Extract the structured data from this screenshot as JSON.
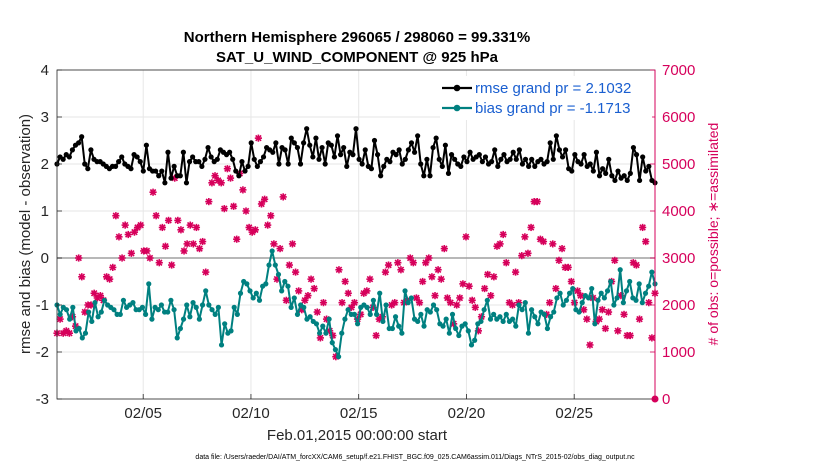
{
  "chart_data": {
    "type": "line",
    "title": "Northern Hemisphere 296065 / 298060 = 99.331%",
    "subtitle": "SAT_U_WIND_COMPONENT @ 925 hPa",
    "xlabel": "Feb.01,2015 00:00:00 start",
    "ylabel": "rmse and bias (model - observation)",
    "ylabel_right": "# of obs: o=possible; ∗=assimilated",
    "x_range_days": [
      1,
      28.75
    ],
    "ylim": [
      -3,
      4
    ],
    "ylim_right": [
      0,
      7000
    ],
    "x_ticks": [
      {
        "day": 5,
        "label": "02/05"
      },
      {
        "day": 10,
        "label": "02/10"
      },
      {
        "day": 15,
        "label": "02/15"
      },
      {
        "day": 20,
        "label": "02/20"
      },
      {
        "day": 25,
        "label": "02/25"
      }
    ],
    "y_ticks": [
      "-3",
      "-2",
      "-1",
      "0",
      "1",
      "2",
      "3",
      "4"
    ],
    "y_ticks_right": [
      "0",
      "1000",
      "2000",
      "3000",
      "4000",
      "5000",
      "6000",
      "7000"
    ],
    "grid": true,
    "legend_position": "top-right",
    "colors": {
      "rmse": "#000000",
      "bias": "#008080",
      "obs": "#d6005b",
      "zero_line": "#a0a0a0"
    },
    "series": [
      {
        "name": "rmse grand pr = 2.1032",
        "axis": "left",
        "marker": "circle",
        "values": [
          2.0,
          2.15,
          2.1,
          2.2,
          2.15,
          2.3,
          2.4,
          2.45,
          2.58,
          2.0,
          1.9,
          2.3,
          2.1,
          2.05,
          2.05,
          2.0,
          1.95,
          1.9,
          1.95,
          1.95,
          2.05,
          2.15,
          2.0,
          1.95,
          1.9,
          2.2,
          2.15,
          2.05,
          1.85,
          2.4,
          1.9,
          1.85,
          1.85,
          1.75,
          1.85,
          1.6,
          2.25,
          1.7,
          1.95,
          1.75,
          1.75,
          2.25,
          1.6,
          2.05,
          2.15,
          2.05,
          2.05,
          1.95,
          2.1,
          2.35,
          2.15,
          2.05,
          2.1,
          2.3,
          2.25,
          2.2,
          2.25,
          2.1,
          1.85,
          1.75,
          2.05,
          1.85,
          1.95,
          2.45,
          2.1,
          1.95,
          2.05,
          2.15,
          2.35,
          2.3,
          2.25,
          2.45,
          2.0,
          2.35,
          2.3,
          2.0,
          2.55,
          2.45,
          2.35,
          2.0,
          2.45,
          2.75,
          2.4,
          2.15,
          2.55,
          2.1,
          2.35,
          2.0,
          2.45,
          2.4,
          2.15,
          2.6,
          2.2,
          2.35,
          1.95,
          2.25,
          2.2,
          2.75,
          2.1,
          2.0,
          2.3,
          1.95,
          1.9,
          2.5,
          2.2,
          1.75,
          1.95,
          2.1,
          2.05,
          2.25,
          2.2,
          2.3,
          2.0,
          2.1,
          2.3,
          2.45,
          2.25,
          2.6,
          2.0,
          1.75,
          2.1,
          1.75,
          2.35,
          2.55,
          2.1,
          1.95,
          2.4,
          1.8,
          2.2,
          2.1,
          2.0,
          1.95,
          2.15,
          2.05,
          2.25,
          2.1,
          2.15,
          2.2,
          2.05,
          2.15,
          2.0,
          2.05,
          2.3,
          1.95,
          2.1,
          2.2,
          2.05,
          2.1,
          2.25,
          2.1,
          2.3,
          2.0,
          2.1,
          1.95,
          2.1,
          1.95,
          2.05,
          2.1,
          2.0,
          2.05,
          2.45,
          2.1,
          2.6,
          2.3,
          2.15,
          2.3,
          1.9,
          1.85,
          2.2,
          2.05,
          2.0,
          2.2,
          1.95,
          2.0,
          1.85,
          2.25,
          1.75,
          1.9,
          1.8,
          2.1,
          1.75,
          1.65,
          1.85,
          1.7,
          1.75,
          1.65,
          1.8,
          2.35,
          2.2,
          1.65,
          2.15,
          1.85,
          1.95,
          1.65,
          1.6
        ]
      },
      {
        "name": "bias grand pr = -1.1713",
        "axis": "left",
        "marker": "circle",
        "values": [
          -1.0,
          -1.2,
          -1.05,
          -1.1,
          -1.3,
          -1.05,
          -1.55,
          -1.5,
          -1.7,
          -1.6,
          -1.15,
          -1.35,
          -0.95,
          -1.25,
          -1.15,
          -0.9,
          -1.0,
          -1.05,
          -1.1,
          -1.2,
          -1.2,
          -0.9,
          -1.05,
          -1.0,
          -0.95,
          -1.1,
          -1.1,
          -1.05,
          -1.2,
          -0.55,
          -1.3,
          -1.05,
          -1.1,
          -1.0,
          -1.15,
          -1.15,
          -0.9,
          -1.1,
          -1.7,
          -1.5,
          -1.3,
          -1.0,
          -1.25,
          -0.95,
          -1.05,
          -1.3,
          -1.0,
          -0.7,
          -1.0,
          -1.1,
          -1.2,
          -1.05,
          -1.85,
          -1.4,
          -1.6,
          -1.55,
          -1.05,
          -1.2,
          -0.75,
          -0.5,
          -0.55,
          -0.7,
          -0.85,
          -0.75,
          -0.9,
          -0.6,
          -0.55,
          -0.15,
          0.15,
          -0.15,
          -0.35,
          -0.7,
          -0.5,
          -0.6,
          -1.05,
          -0.85,
          -1.2,
          -1.0,
          -1.05,
          -1.3,
          -1.25,
          -1.35,
          -1.4,
          -1.6,
          -1.45,
          -1.6,
          -1.3,
          -1.8,
          -1.95,
          -2.1,
          -1.6,
          -1.3,
          -1.1,
          -1.2,
          -1.2,
          -1.4,
          -1.05,
          -1.0,
          -1.05,
          -1.2,
          -0.9,
          -1.2,
          -0.75,
          -1.35,
          -1.0,
          -1.5,
          -1.5,
          -1.25,
          -1.45,
          -1.6,
          -0.7,
          -0.95,
          -0.85,
          -1.3,
          -1.35,
          -1.2,
          -1.45,
          -1.1,
          -1.15,
          -1.0,
          -1.1,
          -1.4,
          -1.45,
          -1.3,
          -1.6,
          -1.2,
          -1.5,
          -1.65,
          -1.45,
          -1.4,
          -1.55,
          -1.85,
          -1.75,
          -1.4,
          -1.35,
          -1.1,
          -0.9,
          -1.3,
          -1.2,
          -1.3,
          -1.25,
          -1.35,
          -1.2,
          -1.35,
          -1.3,
          -1.45,
          -1.0,
          -1.1,
          -0.95,
          -1.6,
          -1.1,
          -1.25,
          -1.4,
          -1.15,
          -1.2,
          -1.5,
          -1.25,
          -1.15,
          -0.85,
          -0.75,
          -1.0,
          -0.9,
          -0.75,
          -0.65,
          -1.1,
          -1.15,
          -0.95,
          -0.8,
          -0.85,
          -0.65,
          -1.4,
          -0.9,
          -0.75,
          -0.85,
          -0.7,
          -0.5,
          -1.0,
          -0.85,
          -0.25,
          -0.95,
          -0.7,
          -0.5,
          -0.85,
          -0.9,
          -0.55,
          -0.95,
          -0.75,
          -0.6,
          -0.3,
          -0.55
        ]
      },
      {
        "name": "# of obs",
        "axis": "right",
        "marker": "asterisk",
        "values": [
          1400,
          1700,
          1400,
          1450,
          1400,
          1750,
          1550,
          3000,
          2600,
          1850,
          2000,
          2000,
          2250,
          2150,
          2200,
          2100,
          2600,
          2550,
          2800,
          3900,
          3450,
          3000,
          3700,
          3500,
          3100,
          3550,
          3650,
          3700,
          3150,
          3150,
          3000,
          4400,
          3900,
          2900,
          3650,
          3250,
          3800,
          2850,
          4700,
          3800,
          3600,
          3150,
          3300,
          3700,
          3300,
          3650,
          3200,
          3350,
          2700,
          4200,
          4600,
          4750,
          4650,
          4600,
          4050,
          4900,
          4700,
          4100,
          3400,
          4800,
          4450,
          4000,
          3650,
          3550,
          3600,
          5550,
          4150,
          4250,
          3700,
          3900,
          3300,
          2550,
          3200,
          4300,
          2100,
          2850,
          3300,
          2700,
          2300,
          1900,
          2100,
          2200,
          2550,
          2350,
          1850,
          1300,
          2050,
          1700,
          1450,
          1350,
          900,
          2750,
          2050,
          2500,
          2250,
          1950,
          2050,
          1700,
          1800,
          2250,
          2300,
          2550,
          1950,
          1350,
          1700,
          1750,
          2700,
          2850,
          2000,
          2050,
          2900,
          2750,
          2050,
          2100,
          3000,
          2900,
          2150,
          2050,
          2500,
          2900,
          3000,
          2600,
          2200,
          2750,
          2550,
          3200,
          2150,
          2050,
          1600,
          2000,
          2150,
          2450,
          3450,
          2400,
          2100,
          1950,
          1450,
          1750,
          2350,
          2650,
          2200,
          2600,
          3250,
          3300,
          3500,
          2900,
          2050,
          2000,
          2700,
          2050,
          3050,
          3450,
          3100,
          3650,
          4200,
          4200,
          3400,
          3350,
          1800,
          2050,
          3300,
          2350,
          2950,
          3200,
          2800,
          2800,
          2500,
          2050,
          2300,
          2200,
          1900,
          1700,
          1150,
          2150,
          1650,
          1700,
          1900,
          1500,
          1850,
          2500,
          2950,
          1450,
          2200,
          1800,
          1350,
          1350,
          2900,
          2850,
          1700,
          3650,
          3350,
          2050,
          1300,
          2250
        ]
      }
    ],
    "footer": "data file: /Users/raeder/DAI/ATM_forcXX/CAM6_setup/f.e21.FHIST_BGC.f09_025.CAM6assim.011/Diags_NTrS_2015-02/obs_diag_output.nc"
  }
}
